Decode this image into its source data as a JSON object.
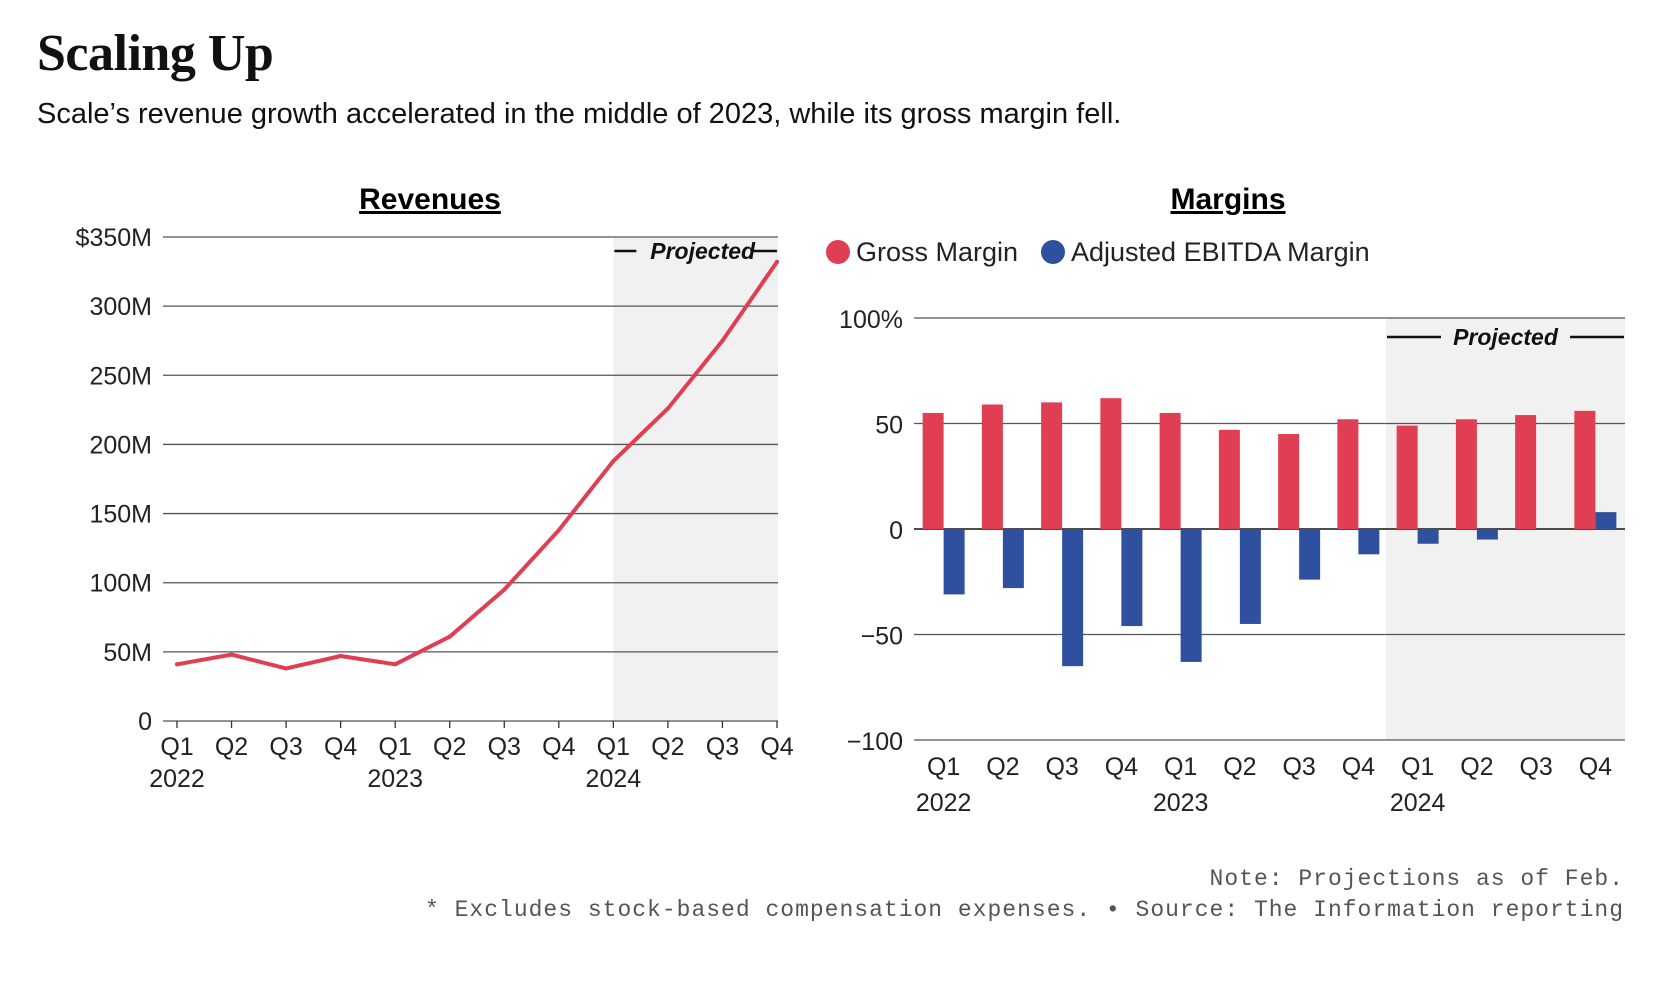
{
  "title": "Scaling Up",
  "subtitle": "Scale’s revenue growth accelerated in the middle of 2023, while its gross margin fell.",
  "note": "Note: Projections as of Feb.",
  "footnote": "* Excludes stock-based compensation expenses. • Source: The Information reporting",
  "colors": {
    "gross": "#e03e52",
    "ebitda": "#2f4f9f",
    "projected_bg": "#f1f1f1",
    "grid": "#555555"
  },
  "chart_data": [
    {
      "type": "line",
      "title": "Revenues",
      "projected_label": "Projected",
      "projected_from": "Q1 2024",
      "categories": [
        "Q1 2022",
        "Q2 2022",
        "Q3 2022",
        "Q4 2022",
        "Q1 2023",
        "Q2 2023",
        "Q3 2023",
        "Q4 2023",
        "Q1 2024",
        "Q2 2024",
        "Q3 2024",
        "Q4 2024"
      ],
      "x_tick_labels": [
        "Q1",
        "Q2",
        "Q3",
        "Q4",
        "Q1",
        "Q2",
        "Q3",
        "Q4",
        "Q1",
        "Q2",
        "Q3",
        "Q4"
      ],
      "x_year_labels": [
        "2022",
        "",
        "",
        "",
        "2023",
        "",
        "",
        "",
        "2024",
        "",
        "",
        ""
      ],
      "series": [
        {
          "values": [
            41,
            48,
            38,
            47,
            41,
            61,
            95,
            138,
            188,
            226,
            275,
            332
          ]
        }
      ],
      "ylim": [
        0,
        350
      ],
      "y_ticks": [
        0,
        50,
        100,
        150,
        200,
        250,
        300,
        350
      ],
      "y_tick_labels": [
        "0",
        "50M",
        "100M",
        "150M",
        "200M",
        "250M",
        "300M",
        "$350M"
      ],
      "grid": true
    },
    {
      "type": "bar",
      "title": "Margins",
      "projected_label": "Projected",
      "projected_from": "Q1 2024",
      "categories": [
        "Q1 2022",
        "Q2 2022",
        "Q3 2022",
        "Q4 2022",
        "Q1 2023",
        "Q2 2023",
        "Q3 2023",
        "Q4 2023",
        "Q1 2024",
        "Q2 2024",
        "Q3 2024",
        "Q4 2024"
      ],
      "x_tick_labels": [
        "Q1",
        "Q2",
        "Q3",
        "Q4",
        "Q1",
        "Q2",
        "Q3",
        "Q4",
        "Q1",
        "Q2",
        "Q3",
        "Q4"
      ],
      "x_year_labels": [
        "2022",
        "",
        "",
        "",
        "2023",
        "",
        "",
        "",
        "2024",
        "",
        "",
        ""
      ],
      "series": [
        {
          "name": "Gross Margin",
          "values": [
            55,
            59,
            60,
            62,
            55,
            47,
            45,
            52,
            49,
            52,
            54,
            56
          ]
        },
        {
          "name": "Adjusted EBITDA Margin",
          "values": [
            -31,
            -28,
            -65,
            -46,
            -63,
            -45,
            -24,
            -12,
            -7,
            -5,
            0,
            8
          ]
        }
      ],
      "ylim": [
        -100,
        100
      ],
      "y_ticks": [
        -100,
        -50,
        0,
        50,
        100
      ],
      "y_tick_labels": [
        "−100",
        "−50",
        "0",
        "50",
        "100%"
      ],
      "legend": "top-left",
      "grid": true
    }
  ]
}
